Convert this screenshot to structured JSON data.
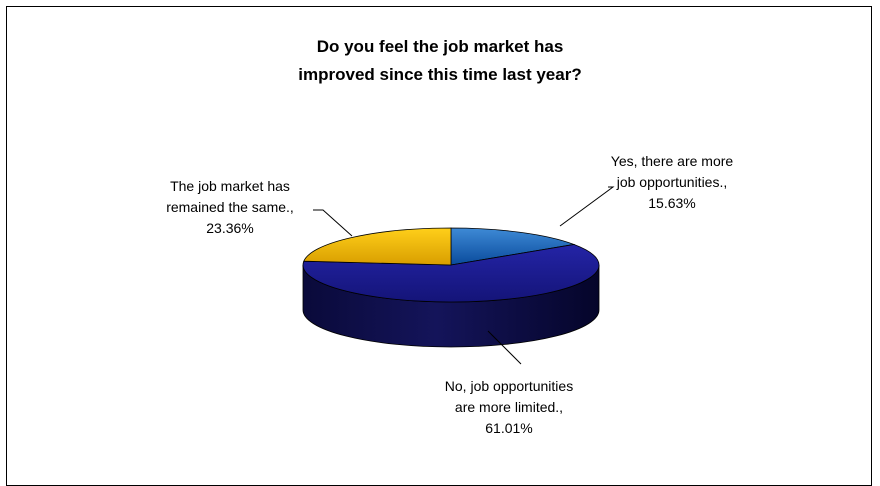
{
  "chart_data": {
    "type": "pie",
    "title_lines": [
      "Do you feel the job market has",
      "improved since this time last year?"
    ],
    "slices": [
      {
        "label_lines": [
          "Yes, there are more",
          "job opportunities.,",
          "15.63%"
        ],
        "value": 15.63,
        "color": "#0e5ab4"
      },
      {
        "label_lines": [
          "No, job opportunities",
          "are more limited.,",
          "61.01%"
        ],
        "value": 61.01,
        "color": "#1a1a8c"
      },
      {
        "label_lines": [
          "The job market has",
          "remained the same.,",
          "23.36%"
        ],
        "value": 23.36,
        "color": "#f0b800"
      }
    ],
    "three_d": true,
    "legend": "none"
  }
}
